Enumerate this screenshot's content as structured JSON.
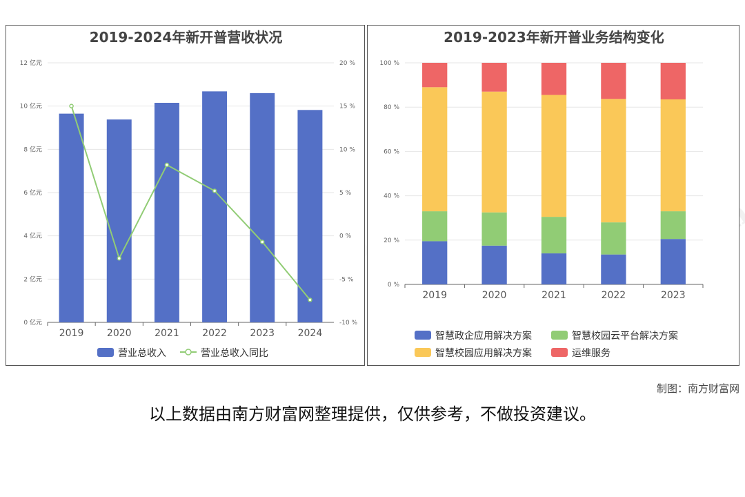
{
  "chart_data": [
    {
      "type": "bar",
      "title": "2019-2024年新开普营收状况",
      "categories": [
        "2019",
        "2020",
        "2021",
        "2022",
        "2023",
        "2024"
      ],
      "series": [
        {
          "name": "营业总收入",
          "type": "bar",
          "axis": "left",
          "values": [
            9.65,
            9.38,
            10.15,
            10.68,
            10.6,
            9.82
          ],
          "color": "#5470c6"
        },
        {
          "name": "营业总收入同比",
          "type": "line",
          "axis": "right",
          "values": [
            15.0,
            -2.6,
            8.2,
            5.2,
            -0.7,
            -7.4
          ],
          "color": "#91cc75"
        }
      ],
      "ylim_left": [
        0,
        12
      ],
      "yticks_left": [
        "0 亿元",
        "2 亿元",
        "4 亿元",
        "6 亿元",
        "8 亿元",
        "10 亿元",
        "12 亿元"
      ],
      "ylim_right": [
        -10,
        20
      ],
      "yticks_right": [
        "-10 %",
        "-5 %",
        "0 %",
        "5 %",
        "10 %",
        "15 %",
        "20 %"
      ],
      "grid": true,
      "legend": "bottom"
    },
    {
      "type": "bar",
      "stacked": true,
      "title": "2019-2023年新开普业务结构变化",
      "categories": [
        "2019",
        "2020",
        "2021",
        "2022",
        "2023"
      ],
      "series": [
        {
          "name": "智慧政企应用解决方案",
          "values": [
            19.5,
            17.5,
            14.0,
            13.5,
            20.5
          ],
          "color": "#5470c6"
        },
        {
          "name": "智慧校园云平台解决方案",
          "values": [
            13.5,
            15.0,
            16.5,
            14.5,
            12.5
          ],
          "color": "#91cc75"
        },
        {
          "name": "智慧校园应用解决方案",
          "values": [
            56.0,
            54.5,
            55.0,
            55.7,
            50.5
          ],
          "color": "#fac858"
        },
        {
          "name": "运维服务",
          "values": [
            11.0,
            13.0,
            14.5,
            16.3,
            16.5
          ],
          "color": "#ee6666"
        }
      ],
      "ylim": [
        0,
        100
      ],
      "yticks": [
        "0 %",
        "20 %",
        "40 %",
        "60 %",
        "80 %",
        "100 %"
      ],
      "grid": true,
      "legend": "bottom"
    }
  ],
  "credit": "制图：南方财富网",
  "disclaimer": "以上数据由南方财富网整理提供，仅供参考，不做投资建议。",
  "watermark": {
    "cn": "南方财富网",
    "en": "southmoney.com"
  }
}
